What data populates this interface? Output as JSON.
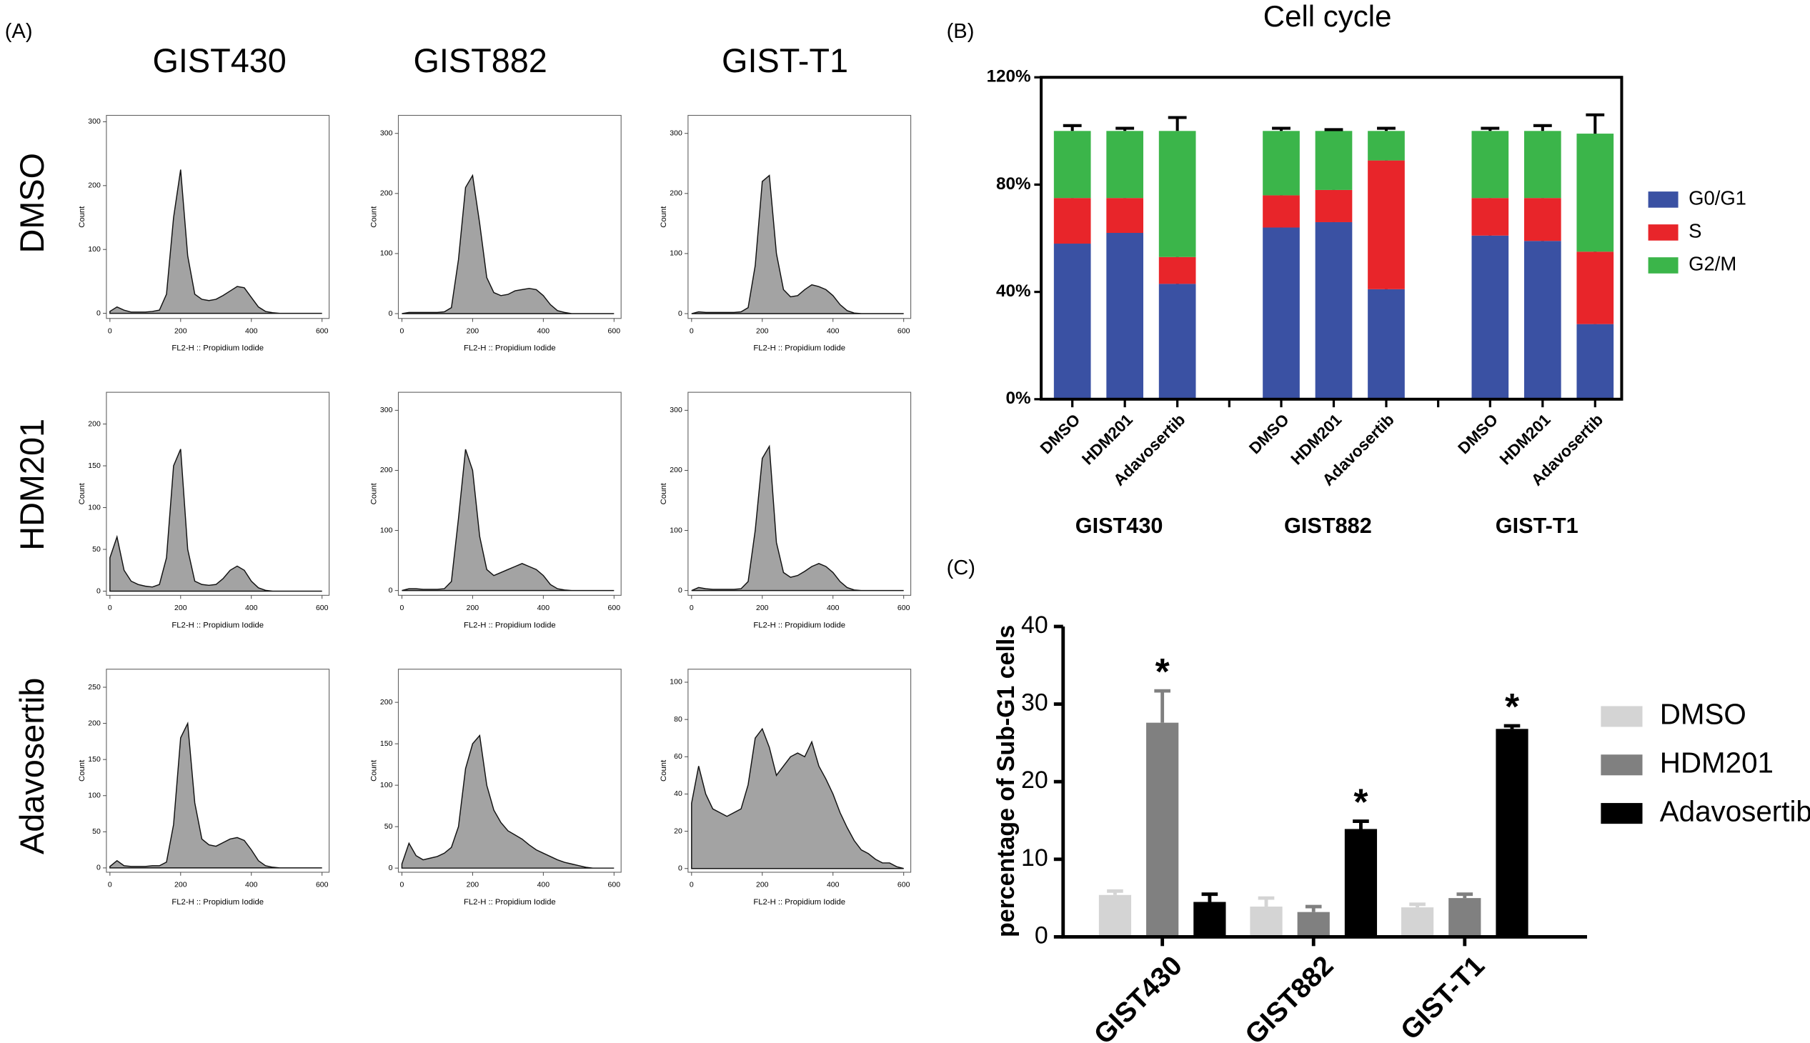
{
  "panel_labels": [
    "(A)",
    "(B)",
    "(C)"
  ],
  "panel_a": {
    "columns": [
      "GIST430",
      "GIST882",
      "GIST-T1"
    ],
    "rows": [
      "DMSO",
      "HDM201",
      "Adavosertib"
    ]
  },
  "chart_data": [
    {
      "type": "area",
      "xlabel": "FL2-H :: Propidium Iodide",
      "ylabel": "Count",
      "color": "#a3a3a3",
      "x": [
        0,
        20,
        40,
        60,
        80,
        100,
        120,
        140,
        160,
        180,
        200,
        220,
        240,
        260,
        280,
        300,
        320,
        340,
        360,
        380,
        400,
        420,
        440,
        460,
        480,
        500,
        520,
        540,
        560,
        580,
        600
      ],
      "values": [
        3,
        10,
        5,
        2,
        2,
        2,
        3,
        5,
        30,
        150,
        225,
        90,
        30,
        22,
        20,
        22,
        28,
        35,
        42,
        40,
        25,
        10,
        3,
        1,
        0,
        0,
        0,
        0,
        0,
        0,
        0
      ],
      "xlim": [
        -10,
        620
      ],
      "xticks": [
        0,
        200,
        400,
        600
      ],
      "ylim": [
        -8,
        310
      ],
      "yticks": [
        0,
        100,
        200,
        300
      ]
    },
    {
      "type": "area",
      "xlabel": "FL2-H :: Propidium Iodide",
      "ylabel": "Count",
      "color": "#a3a3a3",
      "x": [
        0,
        20,
        40,
        60,
        80,
        100,
        120,
        140,
        160,
        180,
        200,
        220,
        240,
        260,
        280,
        300,
        320,
        340,
        360,
        380,
        400,
        420,
        440,
        460,
        480,
        500,
        520,
        540,
        560,
        580,
        600
      ],
      "values": [
        0,
        2,
        2,
        2,
        2,
        2,
        3,
        10,
        90,
        210,
        230,
        150,
        60,
        35,
        30,
        32,
        38,
        40,
        42,
        40,
        30,
        15,
        5,
        2,
        0,
        0,
        0,
        0,
        0,
        0,
        0
      ],
      "xlim": [
        -10,
        620
      ],
      "xticks": [
        0,
        200,
        400,
        600
      ],
      "ylim": [
        -8,
        330
      ],
      "yticks": [
        0,
        100,
        200,
        300
      ]
    },
    {
      "type": "area",
      "xlabel": "FL2-H :: Propidium Iodide",
      "ylabel": "Count",
      "color": "#a3a3a3",
      "x": [
        0,
        20,
        40,
        60,
        80,
        100,
        120,
        140,
        160,
        180,
        200,
        220,
        240,
        260,
        280,
        300,
        320,
        340,
        360,
        380,
        400,
        420,
        440,
        460,
        480,
        500,
        520,
        540,
        560,
        580,
        600
      ],
      "values": [
        0,
        3,
        2,
        2,
        2,
        2,
        2,
        3,
        10,
        80,
        220,
        230,
        100,
        40,
        28,
        30,
        40,
        48,
        45,
        40,
        30,
        15,
        5,
        1,
        0,
        0,
        0,
        0,
        0,
        0,
        0
      ],
      "xlim": [
        -10,
        620
      ],
      "xticks": [
        0,
        200,
        400,
        600
      ],
      "ylim": [
        -8,
        330
      ],
      "yticks": [
        0,
        100,
        200,
        300
      ]
    },
    {
      "type": "area",
      "xlabel": "FL2-H :: Propidium Iodide",
      "ylabel": "Count",
      "color": "#a3a3a3",
      "x": [
        0,
        20,
        40,
        60,
        80,
        100,
        120,
        140,
        160,
        180,
        200,
        220,
        240,
        260,
        280,
        300,
        320,
        340,
        360,
        380,
        400,
        420,
        440,
        460,
        480,
        500,
        520,
        540,
        560,
        580,
        600
      ],
      "values": [
        40,
        65,
        25,
        12,
        8,
        6,
        5,
        8,
        40,
        150,
        170,
        50,
        12,
        8,
        7,
        8,
        15,
        25,
        30,
        25,
        12,
        4,
        1,
        0,
        0,
        0,
        0,
        0,
        0,
        0,
        0
      ],
      "xlim": [
        -10,
        620
      ],
      "xticks": [
        0,
        200,
        400,
        600
      ],
      "ylim": [
        -5,
        238
      ],
      "yticks": [
        0,
        50,
        100,
        150,
        200
      ]
    },
    {
      "type": "area",
      "xlabel": "FL2-H :: Propidium Iodide",
      "ylabel": "Count",
      "color": "#a3a3a3",
      "x": [
        0,
        20,
        40,
        60,
        80,
        100,
        120,
        140,
        160,
        180,
        200,
        220,
        240,
        260,
        280,
        300,
        320,
        340,
        360,
        380,
        400,
        420,
        440,
        460,
        480,
        500,
        520,
        540,
        560,
        580,
        600
      ],
      "values": [
        0,
        3,
        3,
        2,
        2,
        2,
        3,
        15,
        120,
        235,
        200,
        90,
        35,
        25,
        30,
        35,
        40,
        45,
        40,
        35,
        25,
        10,
        3,
        1,
        0,
        0,
        0,
        0,
        0,
        0,
        0
      ],
      "xlim": [
        -10,
        620
      ],
      "xticks": [
        0,
        200,
        400,
        600
      ],
      "ylim": [
        -8,
        330
      ],
      "yticks": [
        0,
        100,
        200,
        300
      ]
    },
    {
      "type": "area",
      "xlabel": "FL2-H :: Propidium Iodide",
      "ylabel": "Count",
      "color": "#a3a3a3",
      "x": [
        0,
        20,
        40,
        60,
        80,
        100,
        120,
        140,
        160,
        180,
        200,
        220,
        240,
        260,
        280,
        300,
        320,
        340,
        360,
        380,
        400,
        420,
        440,
        460,
        480,
        500,
        520,
        540,
        560,
        580,
        600
      ],
      "values": [
        0,
        5,
        3,
        2,
        2,
        2,
        2,
        3,
        15,
        100,
        220,
        240,
        80,
        30,
        22,
        25,
        32,
        40,
        45,
        40,
        30,
        15,
        5,
        1,
        0,
        0,
        0,
        0,
        0,
        0,
        0
      ],
      "xlim": [
        -10,
        620
      ],
      "xticks": [
        0,
        200,
        400,
        600
      ],
      "ylim": [
        -8,
        330
      ],
      "yticks": [
        0,
        100,
        200,
        300
      ]
    },
    {
      "type": "area",
      "xlabel": "FL2-H :: Propidium Iodide",
      "ylabel": "Count",
      "color": "#a3a3a3",
      "x": [
        0,
        20,
        40,
        60,
        80,
        100,
        120,
        140,
        160,
        180,
        200,
        220,
        240,
        260,
        280,
        300,
        320,
        340,
        360,
        380,
        400,
        420,
        440,
        460,
        480,
        500,
        520,
        540,
        560,
        580,
        600
      ],
      "values": [
        2,
        10,
        3,
        2,
        2,
        2,
        3,
        3,
        8,
        60,
        180,
        200,
        90,
        40,
        32,
        30,
        35,
        40,
        42,
        38,
        25,
        10,
        3,
        1,
        0,
        0,
        0,
        0,
        0,
        0,
        0
      ],
      "xlim": [
        -10,
        620
      ],
      "xticks": [
        0,
        200,
        400,
        600
      ],
      "ylim": [
        -6,
        275
      ],
      "yticks": [
        0,
        50,
        100,
        150,
        200,
        250
      ]
    },
    {
      "type": "area",
      "xlabel": "FL2-H :: Propidium Iodide",
      "ylabel": "Count",
      "color": "#a3a3a3",
      "x": [
        0,
        20,
        40,
        60,
        80,
        100,
        120,
        140,
        160,
        180,
        200,
        220,
        240,
        260,
        280,
        300,
        320,
        340,
        360,
        380,
        400,
        420,
        440,
        460,
        480,
        500,
        520,
        540,
        560,
        580,
        600
      ],
      "values": [
        5,
        30,
        15,
        10,
        12,
        14,
        18,
        25,
        50,
        120,
        150,
        160,
        100,
        70,
        55,
        45,
        40,
        35,
        28,
        22,
        18,
        14,
        10,
        7,
        5,
        3,
        1,
        0,
        0,
        0,
        0
      ],
      "xlim": [
        -10,
        620
      ],
      "xticks": [
        0,
        200,
        400,
        600
      ],
      "ylim": [
        -5,
        240
      ],
      "yticks": [
        0,
        50,
        100,
        150,
        200
      ]
    },
    {
      "type": "area",
      "xlabel": "FL2-H :: Propidium Iodide",
      "ylabel": "Count",
      "color": "#a3a3a3",
      "x": [
        0,
        20,
        40,
        60,
        80,
        100,
        120,
        140,
        160,
        180,
        200,
        220,
        240,
        260,
        280,
        300,
        320,
        340,
        360,
        380,
        400,
        420,
        440,
        460,
        480,
        500,
        520,
        540,
        560,
        580,
        600
      ],
      "values": [
        35,
        55,
        40,
        32,
        30,
        28,
        30,
        32,
        45,
        70,
        75,
        65,
        50,
        55,
        60,
        62,
        60,
        68,
        55,
        48,
        40,
        30,
        22,
        15,
        10,
        8,
        5,
        3,
        3,
        1,
        0
      ],
      "xlim": [
        -10,
        620
      ],
      "xticks": [
        0,
        200,
        400,
        600
      ],
      "ylim": [
        -2,
        107
      ],
      "yticks": [
        0,
        20,
        40,
        60,
        80,
        100
      ]
    },
    {
      "type": "bar",
      "stacked": true,
      "title": "Cell cycle",
      "categories": [
        "DMSO",
        "HDM201",
        "Adavosertib",
        "DMSO",
        "HDM201",
        "Adavosertib",
        "DMSO",
        "HDM201",
        "Adavosertib"
      ],
      "groups": [
        "GIST430",
        "GIST882",
        "GIST-T1"
      ],
      "series": [
        {
          "name": "G0/G1",
          "color": "#3a51a3",
          "values": [
            58,
            62,
            43,
            64,
            66,
            41,
            61,
            59,
            28
          ],
          "errors": [
            1.5,
            4,
            5,
            2,
            3,
            3,
            1,
            2,
            8
          ]
        },
        {
          "name": "S",
          "color": "#e8252a",
          "values": [
            17,
            13,
            10,
            12,
            12,
            48,
            14,
            16,
            27
          ],
          "errors": [
            4,
            3,
            1,
            4,
            3,
            1,
            3,
            4,
            1
          ]
        },
        {
          "name": "G2/M",
          "color": "#3bb54a",
          "values": [
            25,
            25,
            47,
            24,
            22,
            11,
            25,
            25,
            44
          ],
          "errors": [
            2,
            1,
            5,
            1,
            0.5,
            1,
            1,
            2,
            7
          ]
        }
      ],
      "ylim": [
        0,
        120
      ],
      "yticks": [
        {
          "value": 0,
          "label": "0%"
        },
        {
          "value": 40,
          "label": "40%"
        },
        {
          "value": 80,
          "label": "80%"
        },
        {
          "value": 120,
          "label": "120%"
        }
      ],
      "legend": "right"
    },
    {
      "type": "bar",
      "ylabel": "percentage of Sub-G1 cells",
      "categories": [
        "GIST430",
        "GIST882",
        "GIST-T1"
      ],
      "series": [
        {
          "name": "DMSO",
          "color": "#d4d4d4",
          "values": [
            5.4,
            3.9,
            3.8
          ],
          "errors": [
            0.5,
            1.1,
            0.4
          ],
          "significance": [
            null,
            null,
            null
          ]
        },
        {
          "name": "HDM201",
          "color": "#808080",
          "values": [
            27.6,
            3.2,
            5.0
          ],
          "errors": [
            4.1,
            0.7,
            0.5
          ],
          "significance": [
            "*",
            null,
            null
          ]
        },
        {
          "name": "Adavosertib",
          "color": "#000000",
          "values": [
            4.5,
            13.9,
            26.8
          ],
          "errors": [
            1.0,
            1.0,
            0.4
          ],
          "significance": [
            null,
            "*",
            "*"
          ]
        }
      ],
      "ylim": [
        0,
        40
      ],
      "yticks": [
        0,
        10,
        20,
        30,
        40
      ],
      "legend": "right"
    }
  ]
}
